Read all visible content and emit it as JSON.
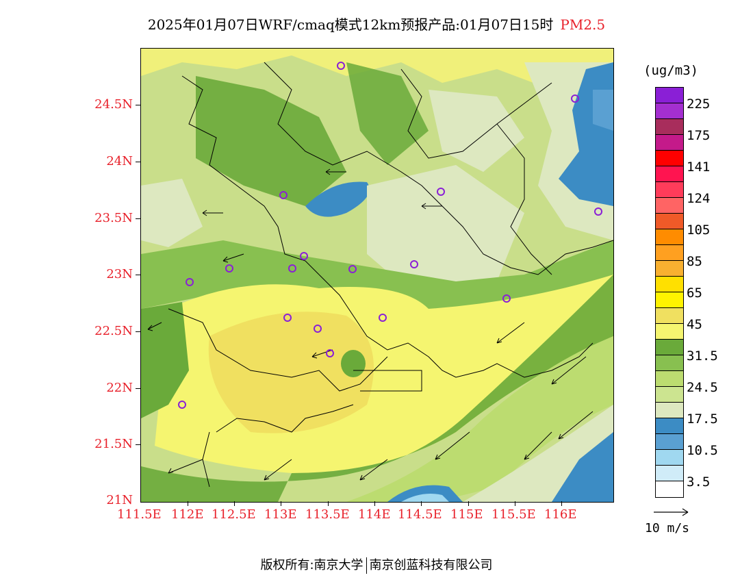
{
  "title": {
    "main": "2025年01月07日WRF/cmaq模式12km预报产品:01月07日15时",
    "pollutant": "PM2.5"
  },
  "axes": {
    "lat_labels": [
      "24.5N",
      "24N",
      "23.5N",
      "23N",
      "22.5N",
      "22N",
      "21.5N",
      "21N"
    ],
    "lon_labels": [
      "111.5E",
      "112E",
      "112.5E",
      "113E",
      "113.5E",
      "114E",
      "114.5E",
      "115E",
      "115.5E",
      "116E"
    ]
  },
  "legend": {
    "unit": "(ug/m3)",
    "labels": [
      "225",
      "175",
      "141",
      "124",
      "105",
      "85",
      "65",
      "45",
      "31.5",
      "24.5",
      "17.5",
      "10.5",
      "3.5"
    ],
    "colors": [
      "#8a1fd6",
      "#a42fd0",
      "#a82d5c",
      "#c41a8a",
      "#ff0000",
      "#ff1450",
      "#ff3c5a",
      "#ff6464",
      "#f05a28",
      "#ff8c00",
      "#ffa020",
      "#f8b030",
      "#ffe000",
      "#fff300",
      "#f0e060",
      "#f5f570",
      "#6aaa3a",
      "#88c050",
      "#bcdc70",
      "#cce490",
      "#dde8c0",
      "#3c8cc4",
      "#5aa0d2",
      "#a0d8f0",
      "#d0ecf8",
      "#ffffff"
    ]
  },
  "wind_reference": {
    "label": "10 m/s"
  },
  "footer": {
    "left": "版权所有:南京大学",
    "right": "南京创蓝科技有限公司"
  }
}
